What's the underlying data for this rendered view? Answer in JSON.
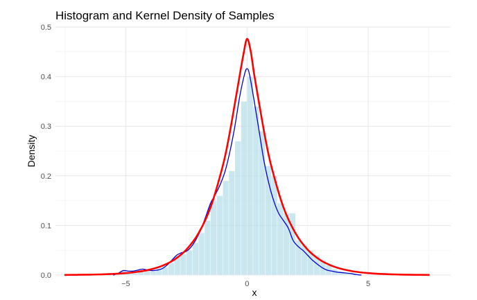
{
  "chart_data": {
    "type": "histogram",
    "title": "Histogram and Kernel Density of Samples",
    "xlabel": "x",
    "ylabel": "Density",
    "xlim": [
      -7.9,
      8.4
    ],
    "ylim": [
      0,
      0.5
    ],
    "x_ticks": [
      -5,
      0,
      5
    ],
    "y_ticks": [
      0.0,
      0.1,
      0.2,
      0.3,
      0.4,
      0.5
    ],
    "grid": true,
    "legend": "none",
    "histogram": {
      "bin_width": 0.25,
      "fill": "#add8e6",
      "bins": [
        {
          "x": -5.375,
          "y": 0.003
        },
        {
          "x": -5.125,
          "y": 0.008
        },
        {
          "x": -4.875,
          "y": 0.006
        },
        {
          "x": -4.625,
          "y": 0.004
        },
        {
          "x": -4.375,
          "y": 0.01
        },
        {
          "x": -4.125,
          "y": 0.009
        },
        {
          "x": -3.875,
          "y": 0.008
        },
        {
          "x": -3.625,
          "y": 0.012
        },
        {
          "x": -3.375,
          "y": 0.016
        },
        {
          "x": -3.125,
          "y": 0.025
        },
        {
          "x": -2.875,
          "y": 0.038
        },
        {
          "x": -2.625,
          "y": 0.042
        },
        {
          "x": -2.375,
          "y": 0.05
        },
        {
          "x": -2.125,
          "y": 0.065
        },
        {
          "x": -1.875,
          "y": 0.085
        },
        {
          "x": -1.625,
          "y": 0.11
        },
        {
          "x": -1.375,
          "y": 0.15
        },
        {
          "x": -1.125,
          "y": 0.16
        },
        {
          "x": -0.875,
          "y": 0.19
        },
        {
          "x": -0.625,
          "y": 0.21
        },
        {
          "x": -0.375,
          "y": 0.27
        },
        {
          "x": -0.125,
          "y": 0.35
        },
        {
          "x": 0.125,
          "y": 0.4
        },
        {
          "x": 0.375,
          "y": 0.34
        },
        {
          "x": 0.625,
          "y": 0.29
        },
        {
          "x": 0.875,
          "y": 0.22
        },
        {
          "x": 1.125,
          "y": 0.2
        },
        {
          "x": 1.375,
          "y": 0.145
        },
        {
          "x": 1.625,
          "y": 0.125
        },
        {
          "x": 1.875,
          "y": 0.125
        },
        {
          "x": 2.125,
          "y": 0.07
        },
        {
          "x": 2.375,
          "y": 0.06
        },
        {
          "x": 2.625,
          "y": 0.05
        },
        {
          "x": 2.875,
          "y": 0.04
        },
        {
          "x": 3.125,
          "y": 0.03
        },
        {
          "x": 3.375,
          "y": 0.02
        },
        {
          "x": 3.625,
          "y": 0.012
        },
        {
          "x": 3.875,
          "y": 0.007
        },
        {
          "x": 4.125,
          "y": 0.004
        },
        {
          "x": 4.375,
          "y": 0.003
        },
        {
          "x": 4.625,
          "y": 0.002
        }
      ]
    },
    "series": [
      {
        "type": "line",
        "color": "#0000cd",
        "x": [
          -5.5,
          -5.3,
          -5.1,
          -4.9,
          -4.7,
          -4.5,
          -4.3,
          -4.1,
          -3.9,
          -3.7,
          -3.5,
          -3.3,
          -3.1,
          -2.9,
          -2.7,
          -2.5,
          -2.3,
          -2.1,
          -1.9,
          -1.7,
          -1.5,
          -1.3,
          -1.1,
          -0.9,
          -0.7,
          -0.5,
          -0.3,
          -0.1,
          0.0,
          0.1,
          0.3,
          0.5,
          0.7,
          0.9,
          1.1,
          1.3,
          1.5,
          1.7,
          1.9,
          2.1,
          2.3,
          2.5,
          2.7,
          2.9,
          3.1,
          3.3,
          3.5,
          3.7,
          3.9,
          4.1,
          4.3,
          4.5,
          4.7
        ],
        "y": [
          0.0,
          0.004,
          0.009,
          0.008,
          0.008,
          0.01,
          0.012,
          0.01,
          0.009,
          0.01,
          0.013,
          0.02,
          0.03,
          0.04,
          0.045,
          0.048,
          0.057,
          0.072,
          0.092,
          0.118,
          0.145,
          0.163,
          0.183,
          0.21,
          0.25,
          0.3,
          0.36,
          0.405,
          0.416,
          0.405,
          0.35,
          0.29,
          0.23,
          0.185,
          0.15,
          0.125,
          0.11,
          0.095,
          0.07,
          0.058,
          0.05,
          0.04,
          0.03,
          0.022,
          0.015,
          0.01,
          0.008,
          0.006,
          0.005,
          0.004,
          0.003,
          0.001,
          0.0
        ]
      },
      {
        "type": "line",
        "color": "#ff0000",
        "x": [
          -7.5,
          -7.0,
          -6.5,
          -6.0,
          -5.5,
          -5.0,
          -4.5,
          -4.0,
          -3.5,
          -3.0,
          -2.5,
          -2.0,
          -1.5,
          -1.0,
          -0.75,
          -0.5,
          -0.3,
          -0.15,
          0.0,
          0.15,
          0.3,
          0.5,
          0.75,
          1.0,
          1.5,
          2.0,
          2.5,
          3.0,
          3.5,
          4.0,
          4.5,
          5.0,
          5.5,
          6.0,
          6.5,
          7.0,
          7.5
        ],
        "y": [
          0.0003,
          0.0005,
          0.0008,
          0.0014,
          0.0023,
          0.0039,
          0.0066,
          0.0111,
          0.0186,
          0.031,
          0.0513,
          0.0843,
          0.137,
          0.22,
          0.277,
          0.346,
          0.403,
          0.444,
          0.476,
          0.452,
          0.403,
          0.346,
          0.277,
          0.22,
          0.137,
          0.0843,
          0.0513,
          0.031,
          0.0186,
          0.0111,
          0.0066,
          0.0039,
          0.0023,
          0.0014,
          0.0008,
          0.0005,
          0.0003
        ]
      }
    ]
  }
}
